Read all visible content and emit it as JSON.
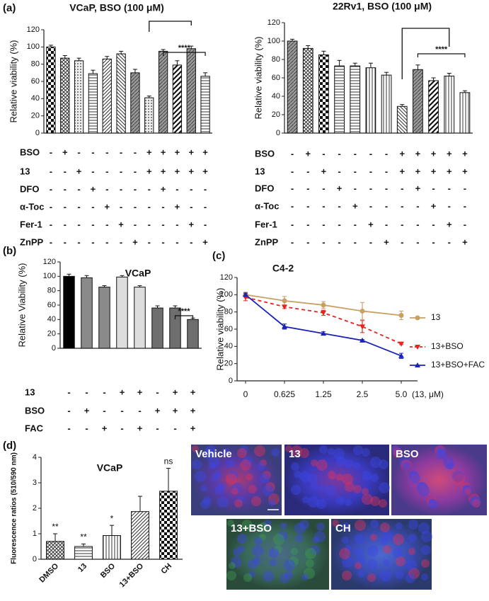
{
  "chart_data": [
    {
      "type": "bar",
      "panel": "(a)",
      "title": "VCaP, BSO (100 μM)",
      "y_label": "Relative viability (%)",
      "values": [
        100,
        87,
        84,
        69,
        86,
        92,
        70,
        41,
        95,
        79,
        98,
        66
      ],
      "errors": [
        2,
        3,
        3,
        4,
        3,
        3,
        4,
        2,
        2,
        5,
        3,
        4
      ],
      "fills": [
        "checker",
        "crosshatch",
        "dots",
        "hlines",
        "diag",
        "rdiag",
        "grey-diag",
        "dots",
        "grey-diag",
        "bold-diag",
        "grey-diag",
        "hlines"
      ],
      "ylim": [
        0,
        120
      ],
      "yticks": [
        0,
        20,
        40,
        60,
        80,
        100,
        120
      ],
      "significance_label": "****",
      "conditions": [
        {
          "label": "BSO",
          "signs": [
            "-",
            "+",
            "-",
            "-",
            "-",
            "-",
            "-",
            "+",
            "+",
            "+",
            "+",
            "+"
          ]
        },
        {
          "label": "13",
          "signs": [
            "-",
            "-",
            "+",
            "-",
            "-",
            "-",
            "-",
            "+",
            "+",
            "+",
            "+",
            "+"
          ]
        },
        {
          "label": "DFO",
          "signs": [
            "-",
            "-",
            "-",
            "+",
            "-",
            "-",
            "-",
            "-",
            "+",
            "-",
            "-",
            "-"
          ]
        },
        {
          "label": "α-Toc",
          "signs": [
            "-",
            "-",
            "-",
            "-",
            "+",
            "-",
            "-",
            "-",
            "-",
            "+",
            "-",
            "-"
          ]
        },
        {
          "label": "Fer-1",
          "signs": [
            "-",
            "-",
            "-",
            "-",
            "-",
            "+",
            "-",
            "-",
            "-",
            "-",
            "+",
            "-"
          ]
        },
        {
          "label": "ZnPP",
          "signs": [
            "-",
            "-",
            "-",
            "-",
            "-",
            "-",
            "+",
            "-",
            "-",
            "-",
            "-",
            "+"
          ]
        }
      ]
    },
    {
      "type": "bar",
      "title": "22Rv1,  BSO (100 μM)",
      "y_label": "Relative viability (%)",
      "values": [
        100,
        92,
        85,
        73,
        73,
        71,
        63,
        29,
        69,
        57,
        62,
        44
      ],
      "errors": [
        2,
        3,
        4,
        6,
        3,
        5,
        3,
        2,
        5,
        3,
        3,
        2
      ],
      "fills": [
        "grey-diag",
        "crosshatch",
        "checker",
        "hlines",
        "hlines",
        "vlines",
        "vlines",
        "rdiag",
        "grey-diag",
        "bold-diag",
        "vlines",
        "vlines"
      ],
      "ylim": [
        0,
        120
      ],
      "yticks": [
        0,
        20,
        40,
        60,
        80,
        100,
        120
      ],
      "significance_label": "****",
      "conditions": [
        {
          "label": "BSO",
          "signs": [
            "-",
            "+",
            "-",
            "-",
            "-",
            "-",
            "-",
            "+",
            "+",
            "+",
            "+",
            "+"
          ]
        },
        {
          "label": "13",
          "signs": [
            "-",
            "-",
            "+",
            "-",
            "-",
            "-",
            "-",
            "+",
            "+",
            "+",
            "+",
            "+"
          ]
        },
        {
          "label": "DFO",
          "signs": [
            "-",
            "-",
            "-",
            "+",
            "-",
            "-",
            "-",
            "-",
            "+",
            "-",
            "-",
            "-"
          ]
        },
        {
          "label": "α-Toc",
          "signs": [
            "-",
            "-",
            "-",
            "-",
            "+",
            "-",
            "-",
            "-",
            "-",
            "+",
            "-",
            "-"
          ]
        },
        {
          "label": "Fer-1",
          "signs": [
            "-",
            "-",
            "-",
            "-",
            "-",
            "+",
            "-",
            "-",
            "-",
            "-",
            "+",
            "-"
          ]
        },
        {
          "label": "ZnPP",
          "signs": [
            "-",
            "-",
            "-",
            "-",
            "-",
            "-",
            "+",
            "-",
            "-",
            "-",
            "-",
            "+"
          ]
        }
      ]
    },
    {
      "type": "bar",
      "panel": "(b)",
      "title": "VCaP",
      "y_label": "Relative Viability (%)",
      "values": [
        100,
        98,
        85,
        99,
        85,
        56,
        56,
        40
      ],
      "errors": [
        3,
        3,
        2,
        2,
        2,
        3,
        3,
        2
      ],
      "colors": [
        "#000000",
        "#8a8a8a",
        "#8a8a8a",
        "#dddddd",
        "#dddddd",
        "#6e6e6e",
        "#6e6e6e",
        "#6e6e6e"
      ],
      "ylim": [
        0,
        120
      ],
      "yticks": [
        0,
        20,
        40,
        60,
        80,
        100,
        120
      ],
      "significance_label": "****",
      "conditions": [
        {
          "label": "13",
          "signs": [
            "-",
            "-",
            "-",
            "+",
            "+",
            "-",
            "+",
            "+"
          ]
        },
        {
          "label": "BSO",
          "signs": [
            "-",
            "+",
            "-",
            "-",
            "-",
            "+",
            "+",
            "+"
          ]
        },
        {
          "label": "FAC",
          "signs": [
            "-",
            "-",
            "+",
            "-",
            "+",
            "-",
            "-",
            "+"
          ]
        }
      ]
    },
    {
      "type": "line",
      "panel": "(c)",
      "title": "C4-2",
      "y_label": "Relative viability (%)",
      "x_label": "(13, μM)",
      "categories": [
        "0",
        "0.625",
        "1.25",
        "2.5",
        "5.0"
      ],
      "series": [
        {
          "name": "13",
          "color": "#c8a064",
          "marker": "circle",
          "dashed": false,
          "values": [
            100,
            93,
            88,
            81,
            76
          ],
          "errors": [
            3,
            5,
            4,
            10,
            5
          ]
        },
        {
          "name": "13+BSO",
          "color": "#e8221e",
          "marker": "triangle-down",
          "dashed": true,
          "values": [
            97,
            86,
            79,
            63,
            43
          ],
          "errors": [
            4,
            2,
            3,
            7,
            1
          ]
        },
        {
          "name": "13+BSO+FAC",
          "color": "#1a22b8",
          "marker": "triangle-up",
          "dashed": false,
          "values": [
            100,
            63,
            55,
            47,
            29
          ],
          "errors": [
            2,
            3,
            2,
            1,
            3
          ]
        }
      ],
      "ylim": [
        0,
        120
      ],
      "yticks": [
        0,
        20,
        40,
        60,
        80,
        100,
        120
      ]
    },
    {
      "type": "bar",
      "panel": "(d)",
      "title": "VCaP",
      "y_label": "Fluorescence ratios (510/590 nm)",
      "categories": [
        "DMSO",
        "13",
        "BSO",
        "13+BSO",
        "CH"
      ],
      "values": [
        0.7,
        0.5,
        0.93,
        1.87,
        2.67
      ],
      "errors": [
        0.3,
        0.1,
        0.4,
        0.6,
        0.9
      ],
      "value_annotations": [
        "**",
        "**",
        "*",
        null,
        "ns"
      ],
      "fills": [
        "crosshatch",
        "hlines",
        "vlines",
        "diag",
        "checker"
      ],
      "ylim": [
        0,
        4
      ],
      "yticks": [
        0,
        1,
        2,
        3,
        4
      ]
    }
  ],
  "images": [
    {
      "label": "Vehicle"
    },
    {
      "label": "13"
    },
    {
      "label": "BSO"
    },
    {
      "label": "13+BSO"
    },
    {
      "label": "CH"
    }
  ]
}
